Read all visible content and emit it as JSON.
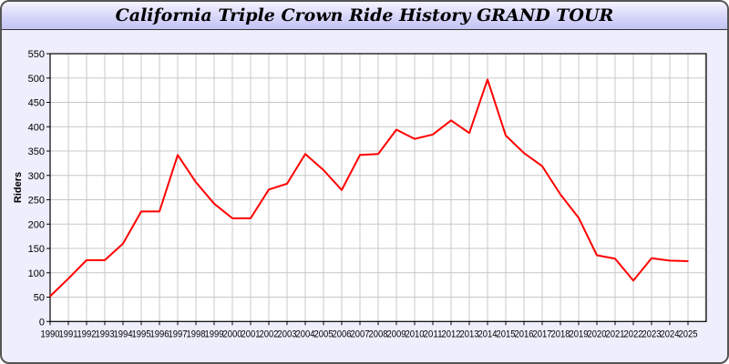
{
  "chart_data": {
    "type": "line",
    "title": "California Triple Crown Ride History GRAND TOUR",
    "xlabel": "",
    "ylabel": "Riders",
    "ylim": [
      0,
      550
    ],
    "yticks": [
      0,
      50,
      100,
      150,
      200,
      250,
      300,
      350,
      400,
      450,
      500,
      550
    ],
    "grid": true,
    "line_color": "#ff0000",
    "x": [
      1990,
      1991,
      1992,
      1993,
      1994,
      1995,
      1996,
      1997,
      1998,
      1999,
      2000,
      2001,
      2002,
      2003,
      2004,
      2005,
      2006,
      2007,
      2008,
      2009,
      2010,
      2011,
      2012,
      2013,
      2014,
      2015,
      2016,
      2017,
      2018,
      2019,
      2020,
      2021,
      2022,
      2023,
      2024,
      2025
    ],
    "series": [
      {
        "values": [
          52,
          88,
          126,
          126,
          160,
          226,
          226,
          342,
          286,
          242,
          212,
          212,
          271,
          283,
          344,
          311,
          270,
          342,
          344,
          394,
          375,
          384,
          413,
          387,
          497,
          382,
          346,
          319,
          261,
          213,
          136,
          129,
          84,
          130,
          125,
          124
        ]
      }
    ]
  }
}
